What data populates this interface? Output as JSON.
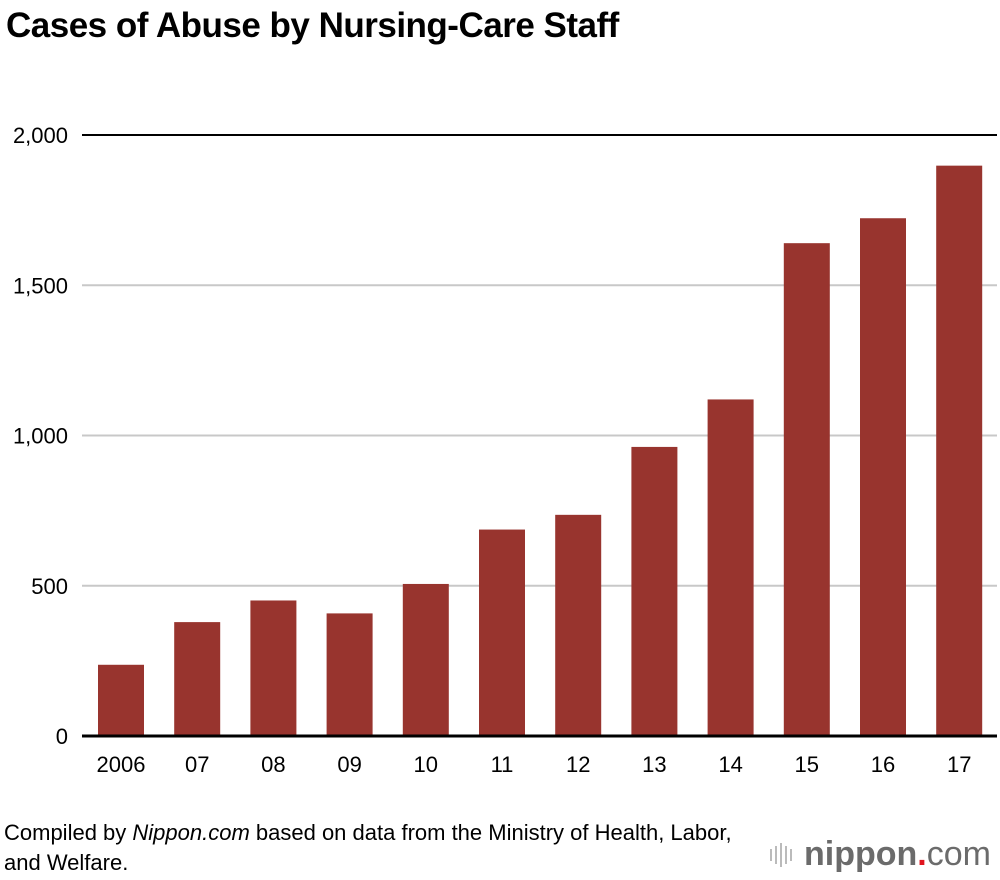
{
  "chart_data": {
    "type": "bar",
    "title": "Cases of Abuse by Nursing-Care Staff",
    "categories": [
      "2006",
      "07",
      "08",
      "09",
      "10",
      "11",
      "12",
      "13",
      "14",
      "15",
      "16",
      "17"
    ],
    "values": [
      237,
      379,
      451,
      408,
      506,
      687,
      736,
      962,
      1120,
      1640,
      1723,
      1898
    ],
    "ylim": [
      0,
      2000
    ],
    "yticks": [
      0,
      500,
      1000,
      1500,
      2000
    ],
    "ytick_labels": [
      "0",
      "500",
      "1,000",
      "1,500",
      "2,000"
    ],
    "xlabel": "",
    "ylabel": "",
    "grid": true,
    "bar_color": "#98342e"
  },
  "source": {
    "prefix": "Compiled by ",
    "site": "Nippon.com",
    "suffix": " based on data from the Ministry of Health, Labor, and Welfare."
  },
  "logo": {
    "name": "nippon",
    "dot": ".",
    "com": "com",
    "dot_color": "#e0141e"
  }
}
